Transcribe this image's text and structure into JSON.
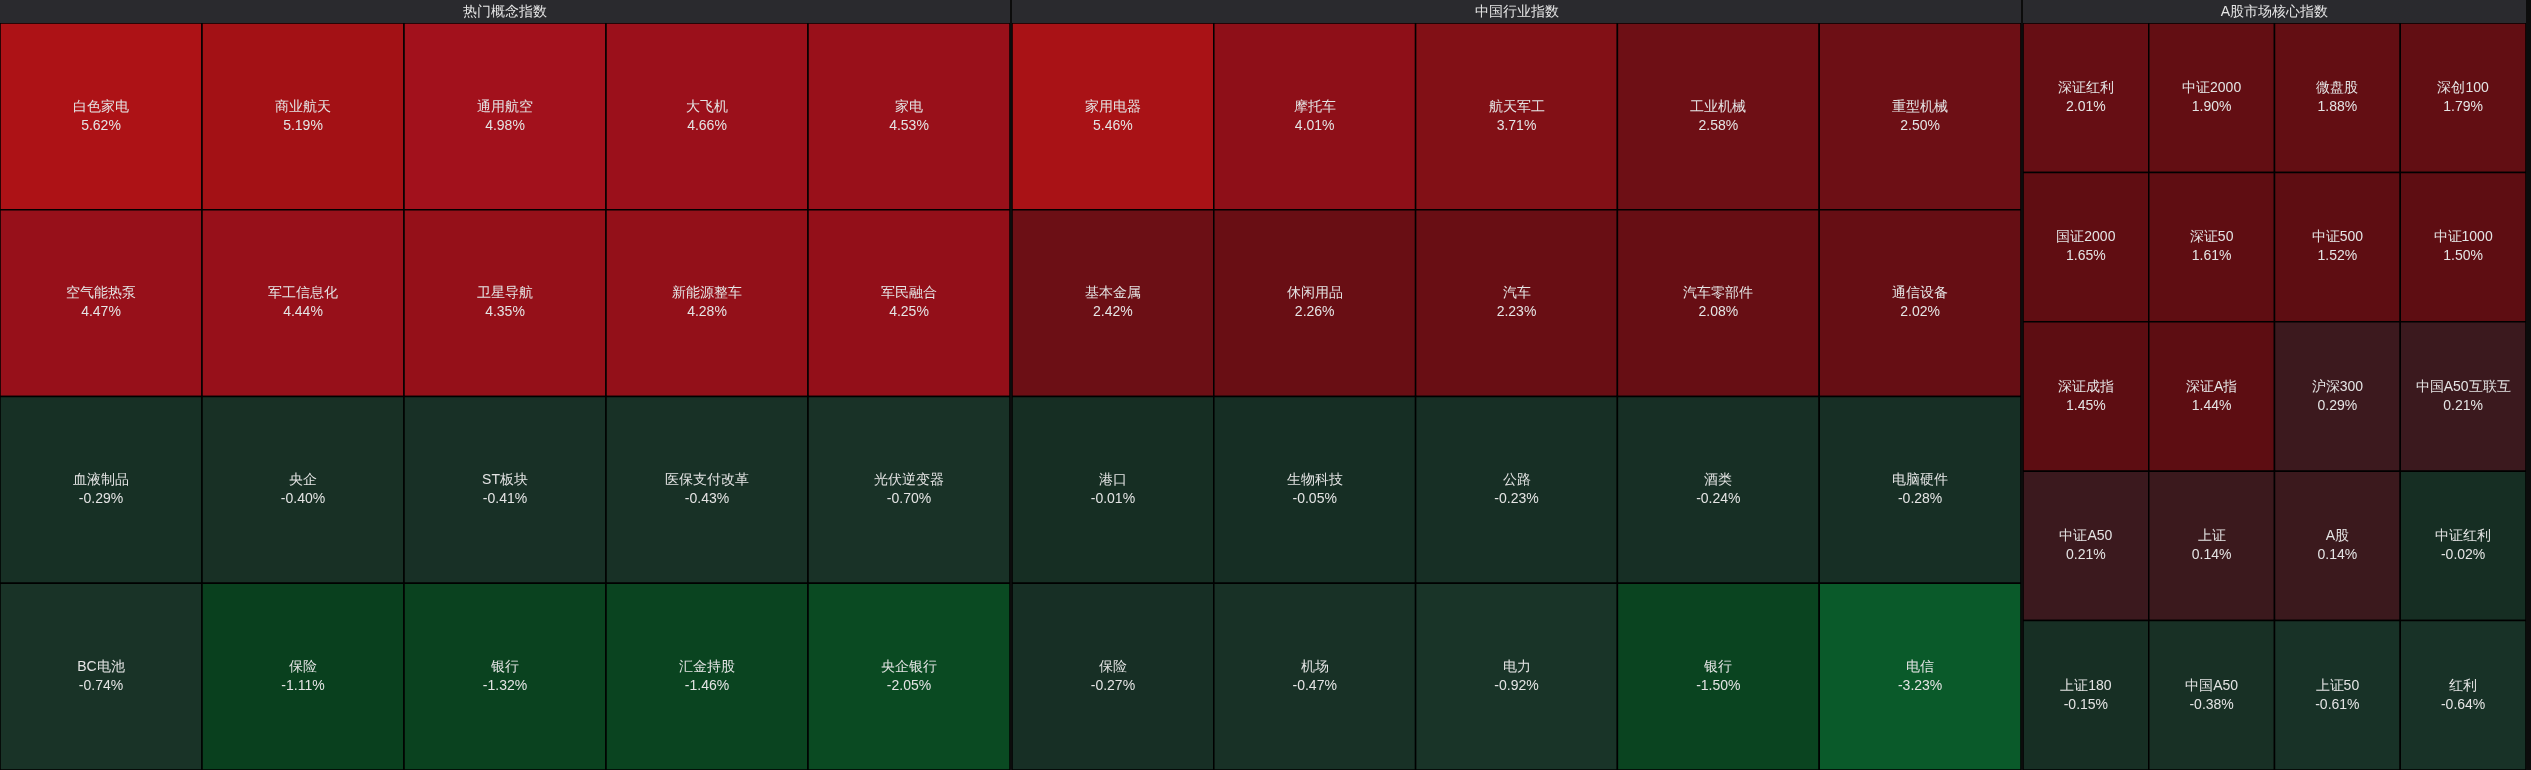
{
  "chart_data": [
    {
      "type": "other",
      "title": "热门概念指数",
      "categories": [
        "白色家电",
        "商业航天",
        "通用航空",
        "大飞机",
        "家电",
        "空气能热泵",
        "军工信息化",
        "卫星导航",
        "新能源整车",
        "军民融合",
        "血液制品",
        "央企",
        "ST板块",
        "医保支付改革",
        "光伏逆变器",
        "BC电池",
        "保险",
        "银行",
        "汇金持股",
        "央企银行"
      ],
      "values": [
        5.62,
        5.19,
        4.98,
        4.66,
        4.53,
        4.47,
        4.44,
        4.35,
        4.28,
        4.25,
        -0.29,
        -0.4,
        -0.41,
        -0.43,
        -0.7,
        -0.74,
        -1.11,
        -1.32,
        -1.46,
        -2.05
      ],
      "value_labels": [
        "5.62%",
        "5.19%",
        "4.98%",
        "4.66%",
        "4.53%",
        "4.47%",
        "4.44%",
        "4.35%",
        "4.28%",
        "4.25%",
        "-0.29%",
        "-0.40%",
        "-0.41%",
        "-0.43%",
        "-0.70%",
        "-0.74%",
        "-1.11%",
        "-1.32%",
        "-1.46%",
        "-2.05%"
      ]
    },
    {
      "type": "other",
      "title": "中国行业指数",
      "categories": [
        "家用电器",
        "摩托车",
        "航天军工",
        "工业机械",
        "重型机械",
        "基本金属",
        "休闲用品",
        "汽车",
        "汽车零部件",
        "通信设备",
        "港口",
        "生物科技",
        "公路",
        "酒类",
        "电脑硬件",
        "保险",
        "机场",
        "电力",
        "银行",
        "电信"
      ],
      "values": [
        5.46,
        4.01,
        3.71,
        2.58,
        2.5,
        2.42,
        2.26,
        2.23,
        2.08,
        2.02,
        -0.01,
        -0.05,
        -0.23,
        -0.24,
        -0.28,
        -0.27,
        -0.47,
        -0.92,
        -1.5,
        -3.23
      ],
      "value_labels": [
        "5.46%",
        "4.01%",
        "3.71%",
        "2.58%",
        "2.50%",
        "2.42%",
        "2.26%",
        "2.23%",
        "2.08%",
        "2.02%",
        "-0.01%",
        "-0.05%",
        "-0.23%",
        "-0.24%",
        "-0.28%",
        "-0.27%",
        "-0.47%",
        "-0.92%",
        "-1.50%",
        "-3.23%"
      ]
    },
    {
      "type": "other",
      "title": "A股市场核心指数",
      "categories": [
        "深证红利",
        "中证2000",
        "微盘股",
        "深创100",
        "国证2000",
        "深证50",
        "中证500",
        "中证1000",
        "深证成指",
        "深证A指",
        "沪深300",
        "中国A50互联互",
        "中证A50",
        "上证",
        "A股",
        "中证红利",
        "上证180",
        "中国A50",
        "上证50",
        "红利"
      ],
      "values": [
        2.01,
        1.9,
        1.88,
        1.79,
        1.65,
        1.61,
        1.52,
        1.5,
        1.45,
        1.44,
        0.29,
        0.21,
        0.21,
        0.14,
        0.14,
        -0.02,
        -0.15,
        -0.38,
        -0.61,
        -0.64
      ],
      "value_labels": [
        "2.01%",
        "1.90%",
        "1.88%",
        "1.79%",
        "1.65%",
        "1.61%",
        "1.52%",
        "1.50%",
        "1.45%",
        "1.44%",
        "0.29%",
        "0.21%",
        "0.21%",
        "0.14%",
        "0.14%",
        "-0.02%",
        "-0.15%",
        "-0.38%",
        "-0.61%",
        "-0.64%"
      ]
    }
  ]
}
